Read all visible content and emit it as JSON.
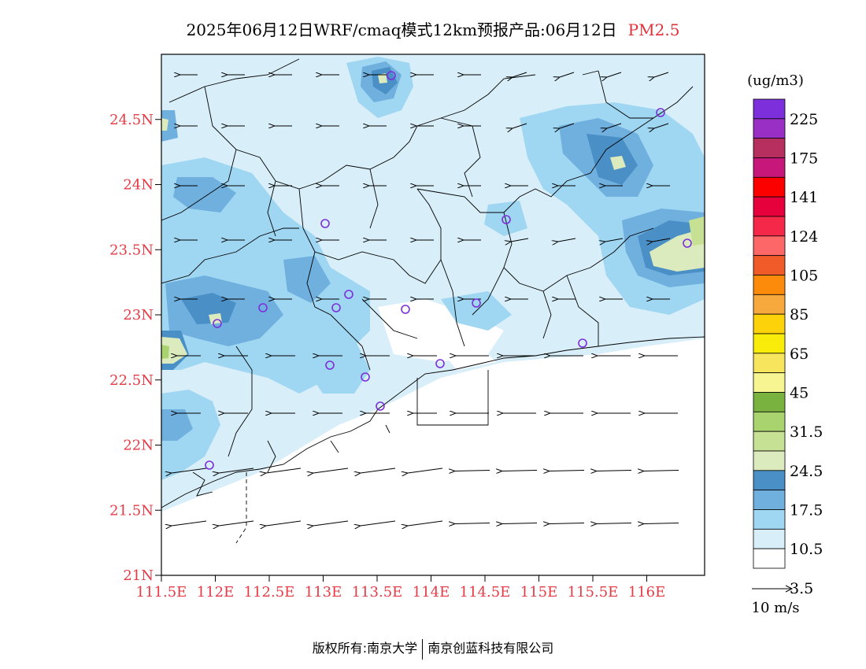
{
  "title": {
    "main": "2025年06月12日WRF/cmaq模式12km预报产品:06月12日",
    "pollutant": "PM2.5"
  },
  "map": {
    "lat_ticks": [
      "24.5N",
      "24N",
      "23.5N",
      "23N",
      "22.5N",
      "22N",
      "21.5N",
      "21N"
    ],
    "lon_ticks": [
      "111.5E",
      "112E",
      "112.5E",
      "113E",
      "113.5E",
      "114E",
      "114.5E",
      "115E",
      "115.5E",
      "116E"
    ],
    "lat_range": [
      21,
      25
    ],
    "lon_range": [
      111.5,
      116.7
    ]
  },
  "colorbar": {
    "unit": "(ug/m3)",
    "colors": [
      "#ffffff",
      "#d8eef9",
      "#9fd6f2",
      "#6fb0de",
      "#4a8fc6",
      "#dcebbd",
      "#c6e094",
      "#a9d36f",
      "#7ab240",
      "#f6f592",
      "#f7e55e",
      "#f9ec0b",
      "#fcd20a",
      "#f7a93d",
      "#fc8b0b",
      "#f15a29",
      "#fe6767",
      "#f6284a",
      "#e6003c",
      "#fc0000",
      "#c8177a",
      "#b62f5e",
      "#9a2fc6",
      "#7d2fdc"
    ],
    "labels": [
      "3.5",
      "10.5",
      "17.5",
      "24.5",
      "31.5",
      "45",
      "65",
      "85",
      "105",
      "124",
      "141",
      "175",
      "225"
    ]
  },
  "wind_legend": {
    "label": "10 m/s"
  },
  "stations_icon": "station-circle-icon",
  "footer": {
    "left": "版权所有:南京大学",
    "right": "南京创蓝科技有限公司"
  }
}
